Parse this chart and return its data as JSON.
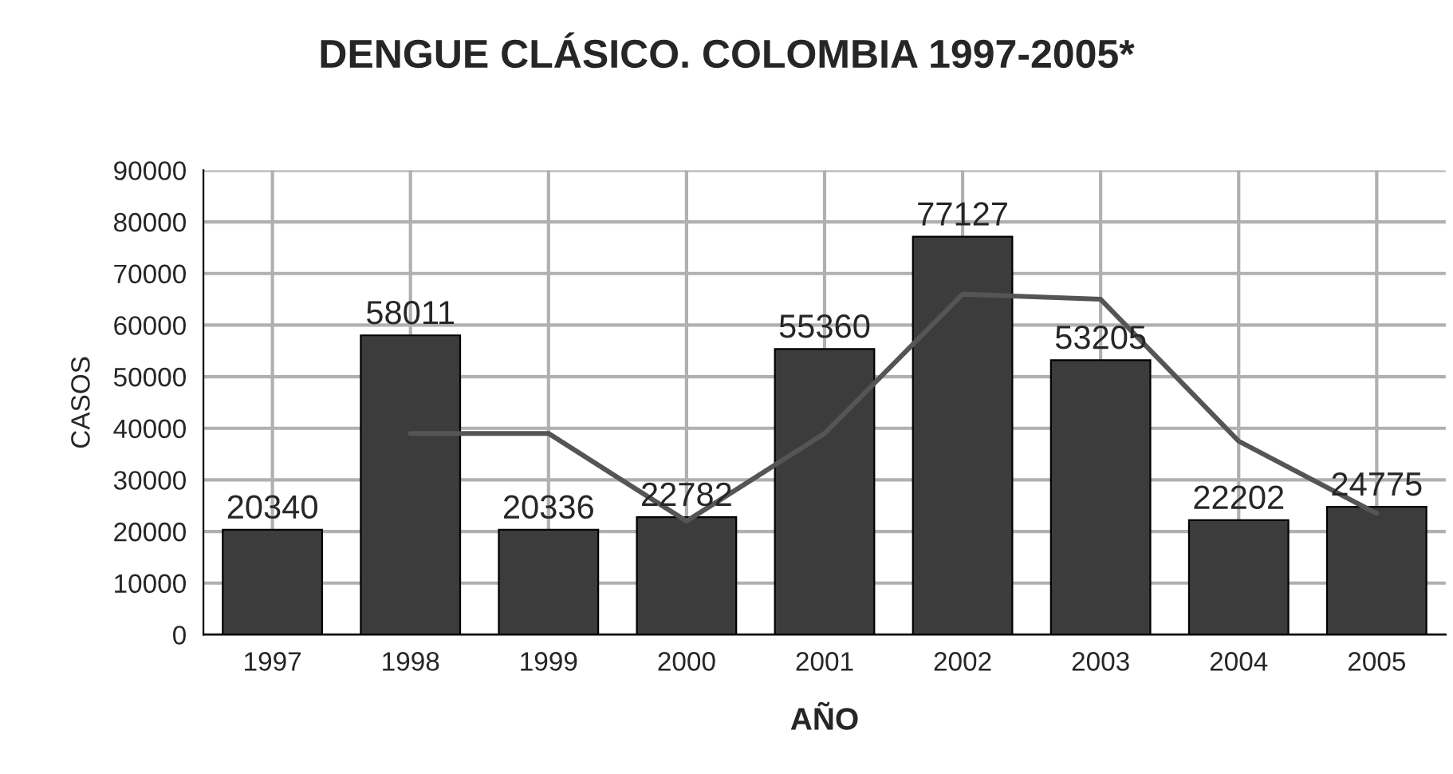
{
  "chart_data": {
    "type": "bar",
    "title": "DENGUE CLÁSICO. COLOMBIA 1997-2005*",
    "xlabel": "AÑO",
    "ylabel": "CASOS",
    "categories": [
      "1997",
      "1998",
      "1999",
      "2000",
      "2001",
      "2002",
      "2003",
      "2004",
      "2005"
    ],
    "series": [
      {
        "color": "#3c3c3c",
        "values": [
          20340,
          58011,
          20336,
          22782,
          55360,
          77127,
          53205,
          22202,
          24775
        ],
        "value_labels": [
          "20340",
          "58011",
          "20336",
          "22782",
          "55360",
          "77127",
          "53205",
          "22202",
          "24775"
        ]
      },
      {
        "type": "line",
        "color": "#555555",
        "values": [
          null,
          39000,
          39000,
          22000,
          39000,
          66000,
          65000,
          37500,
          23500
        ]
      }
    ],
    "ylim": [
      0,
      90000
    ],
    "yticks": [
      0,
      10000,
      20000,
      30000,
      40000,
      50000,
      60000,
      70000,
      80000,
      90000
    ],
    "grid": true,
    "legend": false,
    "marker": "none",
    "line_style": "solid"
  }
}
